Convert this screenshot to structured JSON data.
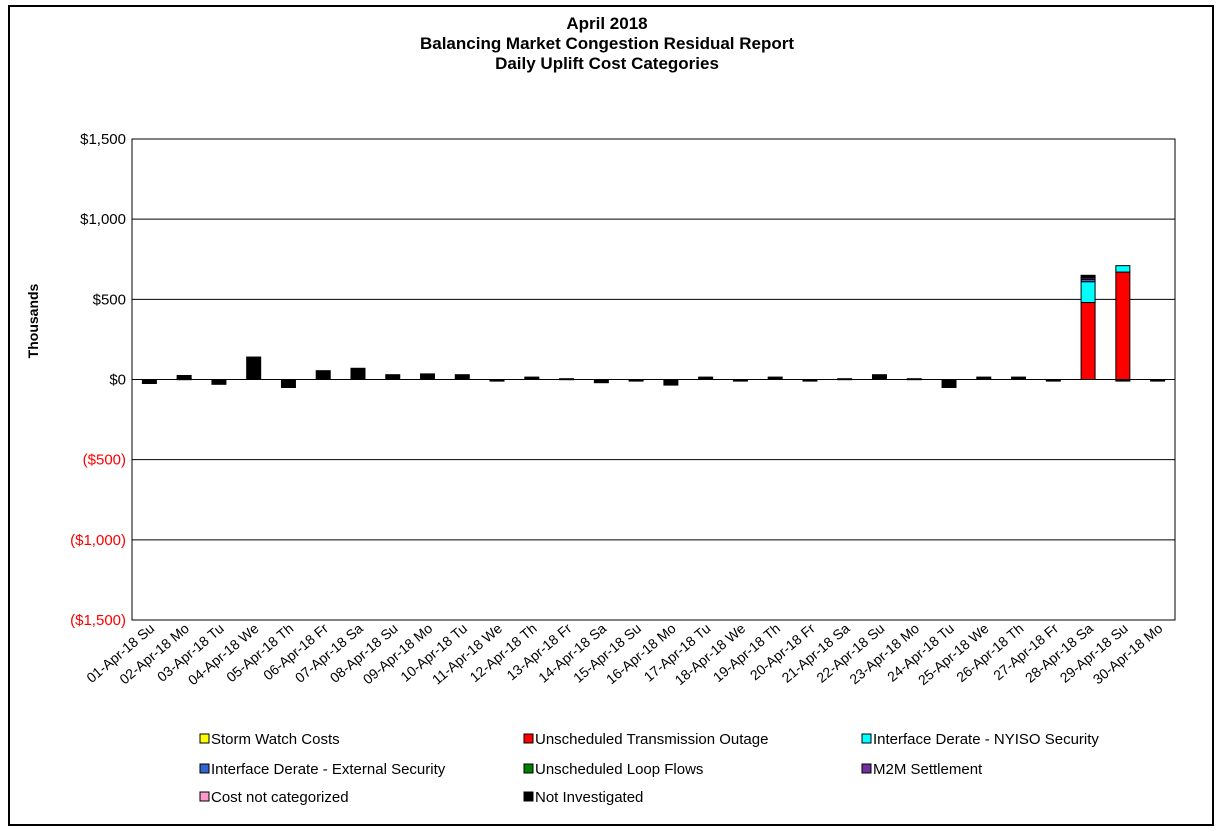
{
  "chart_data": {
    "type": "bar",
    "stacked": true,
    "title_lines": [
      "April 2018",
      "Balancing Market Congestion Residual Report",
      "Daily Uplift Cost Categories"
    ],
    "xlabel": "",
    "ylabel": "Thousands",
    "ylim": [
      -1500,
      1500
    ],
    "yticks": [
      1500,
      1000,
      500,
      0,
      -500,
      -1000,
      -1500
    ],
    "ytick_labels": [
      "$1,500",
      "$1,000",
      "$500",
      "$0",
      "($500)",
      "($1,000)",
      "($1,500)"
    ],
    "positive_tick_color": "#000000",
    "negative_tick_color": "#ff0000",
    "grid": "horizontal",
    "legend_position": "bottom",
    "categories": [
      "01-Apr-18 Su",
      "02-Apr-18 Mo",
      "03-Apr-18 Tu",
      "04-Apr-18 We",
      "05-Apr-18 Th",
      "06-Apr-18 Fr",
      "07-Apr-18 Sa",
      "08-Apr-18 Su",
      "09-Apr-18 Mo",
      "10-Apr-18 Tu",
      "11-Apr-18 We",
      "12-Apr-18 Th",
      "13-Apr-18 Fr",
      "14-Apr-18 Sa",
      "15-Apr-18 Su",
      "16-Apr-18 Mo",
      "17-Apr-18 Tu",
      "18-Apr-18 We",
      "19-Apr-18 Th",
      "20-Apr-18 Fr",
      "21-Apr-18 Sa",
      "22-Apr-18 Su",
      "23-Apr-18 Mo",
      "24-Apr-18 Tu",
      "25-Apr-18 We",
      "26-Apr-18 Th",
      "27-Apr-18 Fr",
      "28-Apr-18 Sa",
      "29-Apr-18 Su",
      "30-Apr-18 Mo"
    ],
    "series": [
      {
        "name": "Storm Watch Costs",
        "color": "#ffff00",
        "values": [
          0,
          0,
          0,
          0,
          0,
          0,
          0,
          0,
          0,
          0,
          0,
          0,
          0,
          0,
          0,
          0,
          0,
          0,
          0,
          0,
          0,
          0,
          0,
          0,
          0,
          0,
          0,
          0,
          0,
          0
        ]
      },
      {
        "name": "Unscheduled Transmission Outage",
        "color": "#ff0000",
        "values": [
          0,
          0,
          0,
          0,
          0,
          0,
          0,
          0,
          0,
          0,
          0,
          0,
          0,
          0,
          0,
          0,
          0,
          0,
          0,
          0,
          0,
          0,
          0,
          0,
          0,
          0,
          0,
          480,
          670,
          0
        ]
      },
      {
        "name": "Interface Derate - NYISO Security",
        "color": "#00ffff",
        "values": [
          0,
          0,
          0,
          0,
          0,
          0,
          0,
          0,
          0,
          0,
          0,
          0,
          0,
          0,
          0,
          0,
          0,
          0,
          0,
          0,
          0,
          0,
          0,
          0,
          0,
          0,
          0,
          130,
          40,
          0
        ]
      },
      {
        "name": "Interface Derate - External Security",
        "color": "#3366cc",
        "values": [
          0,
          0,
          0,
          0,
          0,
          0,
          0,
          0,
          0,
          0,
          0,
          0,
          0,
          0,
          0,
          0,
          0,
          0,
          0,
          0,
          0,
          0,
          0,
          0,
          0,
          0,
          0,
          15,
          0,
          0
        ]
      },
      {
        "name": "Unscheduled Loop Flows",
        "color": "#008000",
        "values": [
          0,
          0,
          0,
          0,
          0,
          0,
          0,
          0,
          0,
          0,
          0,
          0,
          0,
          0,
          0,
          0,
          0,
          0,
          0,
          0,
          0,
          0,
          0,
          0,
          0,
          0,
          0,
          0,
          0,
          0
        ]
      },
      {
        "name": "M2M Settlement",
        "color": "#7030a0",
        "values": [
          0,
          0,
          0,
          0,
          0,
          0,
          0,
          0,
          0,
          0,
          0,
          0,
          0,
          0,
          0,
          0,
          0,
          0,
          0,
          0,
          0,
          0,
          0,
          0,
          0,
          0,
          0,
          10,
          0,
          0
        ]
      },
      {
        "name": "Cost not categorized",
        "color": "#ff99cc",
        "values": [
          0,
          5,
          0,
          0,
          0,
          0,
          0,
          0,
          0,
          0,
          0,
          0,
          0,
          0,
          0,
          0,
          0,
          0,
          0,
          0,
          0,
          0,
          0,
          0,
          0,
          0,
          0,
          0,
          0,
          0
        ]
      },
      {
        "name": "Not Investigated",
        "color": "#000000",
        "values": [
          -25,
          20,
          -30,
          140,
          -50,
          55,
          70,
          30,
          35,
          30,
          -10,
          15,
          5,
          -20,
          -10,
          -35,
          15,
          -10,
          15,
          -10,
          5,
          30,
          5,
          -50,
          15,
          15,
          -10,
          15,
          -10,
          -10
        ]
      }
    ]
  }
}
